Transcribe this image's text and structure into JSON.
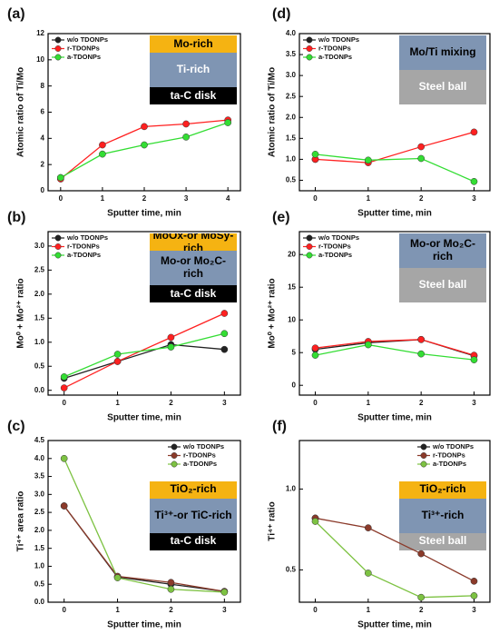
{
  "chart_data": [
    {
      "type": "line",
      "label": "(a)",
      "x_label": "Sputter time, min",
      "y_label": "Atomic ratio of Ti/Mo",
      "x": [
        0,
        1,
        2,
        3,
        4
      ],
      "xlim": [
        -0.3,
        4.3
      ],
      "xticks": [
        0,
        1,
        2,
        3,
        4
      ],
      "ylim": [
        0,
        12
      ],
      "yticks": [
        0,
        2,
        4,
        6,
        8,
        10,
        12
      ],
      "legend": "upper left",
      "series": [
        {
          "name": "w/o TDONPs",
          "color": "#222222",
          "values": [
            1.0,
            null,
            null,
            null,
            null
          ]
        },
        {
          "name": "r-TDONPs",
          "color": "#ff2020",
          "values": [
            0.9,
            3.5,
            4.9,
            5.1,
            5.4
          ]
        },
        {
          "name": "a-TDONPs",
          "color": "#33dd33",
          "values": [
            1.0,
            2.8,
            3.5,
            4.1,
            5.2
          ]
        }
      ],
      "annotations": [
        {
          "text": "Mo-rich",
          "color": "#f5b312",
          "text_color": "#000000"
        },
        {
          "text": "Ti-rich",
          "color": "#7f95b3",
          "text_color": "#ffffff"
        },
        {
          "text": "ta-C disk",
          "color": "#000000",
          "text_color": "#ffffff"
        }
      ]
    },
    {
      "type": "line",
      "label": "(d)",
      "x_label": "Sputter time, min",
      "y_label": "Atomic ratio of Ti/Mo",
      "x": [
        0,
        1,
        2,
        3
      ],
      "xlim": [
        -0.3,
        3.3
      ],
      "xticks": [
        0,
        1,
        2,
        3
      ],
      "ylim": [
        0.25,
        4.0
      ],
      "yticks": [
        0.5,
        {
          "value": 1,
          "label": "1.0"
        },
        1.5,
        {
          "value": 2,
          "label": "2.0"
        },
        2.5,
        {
          "value": 3,
          "label": "3.0"
        },
        3.5,
        {
          "value": 4,
          "label": "4.0"
        }
      ],
      "legend": "upper left",
      "series": [
        {
          "name": "w/o TDONPs",
          "color": "#222222",
          "values": [
            1.0,
            null,
            null,
            null
          ]
        },
        {
          "name": "r-TDONPs",
          "color": "#ff2020",
          "values": [
            1.0,
            0.92,
            1.3,
            1.65
          ]
        },
        {
          "name": "a-TDONPs",
          "color": "#33dd33",
          "values": [
            1.12,
            0.98,
            1.02,
            0.47
          ]
        }
      ],
      "annotations": [
        {
          "text": "Mo/Ti mixing",
          "color": "#7f95b3",
          "text_color": "#000000"
        },
        {
          "text": "Steel ball",
          "color": "#a6a6a6",
          "text_color": "#ffffff"
        }
      ]
    },
    {
      "type": "line",
      "label": "(b)",
      "x_label": "Sputter time, min",
      "y_label": "Mo⁰ + Mo²⁺ ratio",
      "x": [
        0,
        1,
        2,
        3
      ],
      "xlim": [
        -0.3,
        3.3
      ],
      "xticks": [
        0,
        1,
        2,
        3
      ],
      "ylim": [
        -0.1,
        3.3
      ],
      "yticks": [
        {
          "value": 0,
          "label": "0.0"
        },
        0.5,
        {
          "value": 1,
          "label": "1.0"
        },
        1.5,
        {
          "value": 2,
          "label": "2.0"
        },
        2.5,
        {
          "value": 3,
          "label": "3.0"
        }
      ],
      "legend": "upper left",
      "series": [
        {
          "name": "w/o TDONPs",
          "color": "#222222",
          "values": [
            0.25,
            0.6,
            0.95,
            0.85
          ]
        },
        {
          "name": "r-TDONPs",
          "color": "#ff2020",
          "values": [
            0.05,
            0.6,
            1.1,
            1.6
          ]
        },
        {
          "name": "a-TDONPs",
          "color": "#33dd33",
          "values": [
            0.28,
            0.75,
            0.9,
            1.18
          ]
        }
      ],
      "annotations": [
        {
          "text": "MoOx-or MoSy-rich",
          "color": "#f5b312",
          "text_color": "#000000"
        },
        {
          "text": "Mo-or Mo₂C-rich",
          "color": "#7f95b3",
          "text_color": "#000000"
        },
        {
          "text": "ta-C disk",
          "color": "#000000",
          "text_color": "#ffffff"
        }
      ]
    },
    {
      "type": "line",
      "label": "(e)",
      "x_label": "Sputter time, min",
      "y_label": "Mo⁰ + Mo²⁺ ratio",
      "x": [
        0,
        1,
        2,
        3
      ],
      "xlim": [
        -0.3,
        3.3
      ],
      "xticks": [
        0,
        1,
        2,
        3
      ],
      "ylim": [
        -1.5,
        23.5
      ],
      "yticks": [
        0,
        5,
        10,
        15,
        20
      ],
      "legend": "upper left",
      "series": [
        {
          "name": "w/o TDONPs",
          "color": "#222222",
          "values": [
            5.5,
            6.5,
            7.0,
            4.5
          ]
        },
        {
          "name": "r-TDONPs",
          "color": "#ff2020",
          "values": [
            5.7,
            6.7,
            7.0,
            4.6
          ]
        },
        {
          "name": "a-TDONPs",
          "color": "#33dd33",
          "values": [
            4.6,
            6.2,
            4.8,
            3.9
          ]
        }
      ],
      "annotations": [
        {
          "text": "Mo-or Mo₂C-rich",
          "color": "#7f95b3",
          "text_color": "#000000"
        },
        {
          "text": "Steel ball",
          "color": "#a6a6a6",
          "text_color": "#ffffff"
        }
      ]
    },
    {
      "type": "line",
      "label": "(c)",
      "x_label": "Sputter time, min",
      "y_label": "Ti⁴⁺ area ratio",
      "x": [
        0,
        1,
        2,
        3
      ],
      "xlim": [
        -0.3,
        3.3
      ],
      "xticks": [
        0,
        1,
        2,
        3
      ],
      "ylim": [
        0,
        4.5
      ],
      "yticks": [
        {
          "value": 0,
          "label": "0.0"
        },
        0.5,
        {
          "value": 1,
          "label": "1.0"
        },
        1.5,
        {
          "value": 2,
          "label": "2.0"
        },
        2.5,
        {
          "value": 3,
          "label": "3.0"
        },
        3.5,
        {
          "value": 4,
          "label": "4.0"
        },
        4.5
      ],
      "legend": "upper right",
      "series": [
        {
          "name": "w/o TDONPs",
          "color": "#222222",
          "values": [
            2.68,
            0.7,
            0.5,
            0.3
          ]
        },
        {
          "name": "r-TDONPs",
          "color": "#8b3a2a",
          "values": [
            2.68,
            0.72,
            0.55,
            0.3
          ]
        },
        {
          "name": "a-TDONPs",
          "color": "#7dc242",
          "values": [
            4.0,
            0.68,
            0.36,
            0.28
          ]
        }
      ],
      "annotations": [
        {
          "text": "TiO₂-rich",
          "color": "#f5b312",
          "text_color": "#000000"
        },
        {
          "text": "Ti³⁺-or TiC-rich",
          "color": "#7f95b3",
          "text_color": "#000000"
        },
        {
          "text": "ta-C disk",
          "color": "#000000",
          "text_color": "#ffffff"
        }
      ]
    },
    {
      "type": "line",
      "label": "(f)",
      "x_label": "Sputter time, min",
      "y_label": "Ti⁴⁺ ratio",
      "x": [
        0,
        1,
        2,
        3
      ],
      "xlim": [
        -0.3,
        3.3
      ],
      "xticks": [
        0,
        1,
        2,
        3
      ],
      "ylim": [
        0.3,
        1.3
      ],
      "yticks": [
        0.5,
        {
          "value": 1,
          "label": "1.0"
        }
      ],
      "legend": "upper right",
      "series": [
        {
          "name": "w/o TDONPs",
          "color": "#222222",
          "values": [
            0.82,
            null,
            null,
            null
          ]
        },
        {
          "name": "r-TDONPs",
          "color": "#8b3a2a",
          "values": [
            0.82,
            0.76,
            0.6,
            0.43
          ]
        },
        {
          "name": "a-TDONPs",
          "color": "#7dc242",
          "values": [
            0.8,
            0.48,
            0.33,
            0.34
          ]
        }
      ],
      "annotations": [
        {
          "text": "TiO₂-rich",
          "color": "#f5b312",
          "text_color": "#000000"
        },
        {
          "text": "Ti³⁺-rich",
          "color": "#7f95b3",
          "text_color": "#000000"
        },
        {
          "text": "Steel ball",
          "color": "#a6a6a6",
          "text_color": "#ffffff"
        }
      ]
    }
  ]
}
